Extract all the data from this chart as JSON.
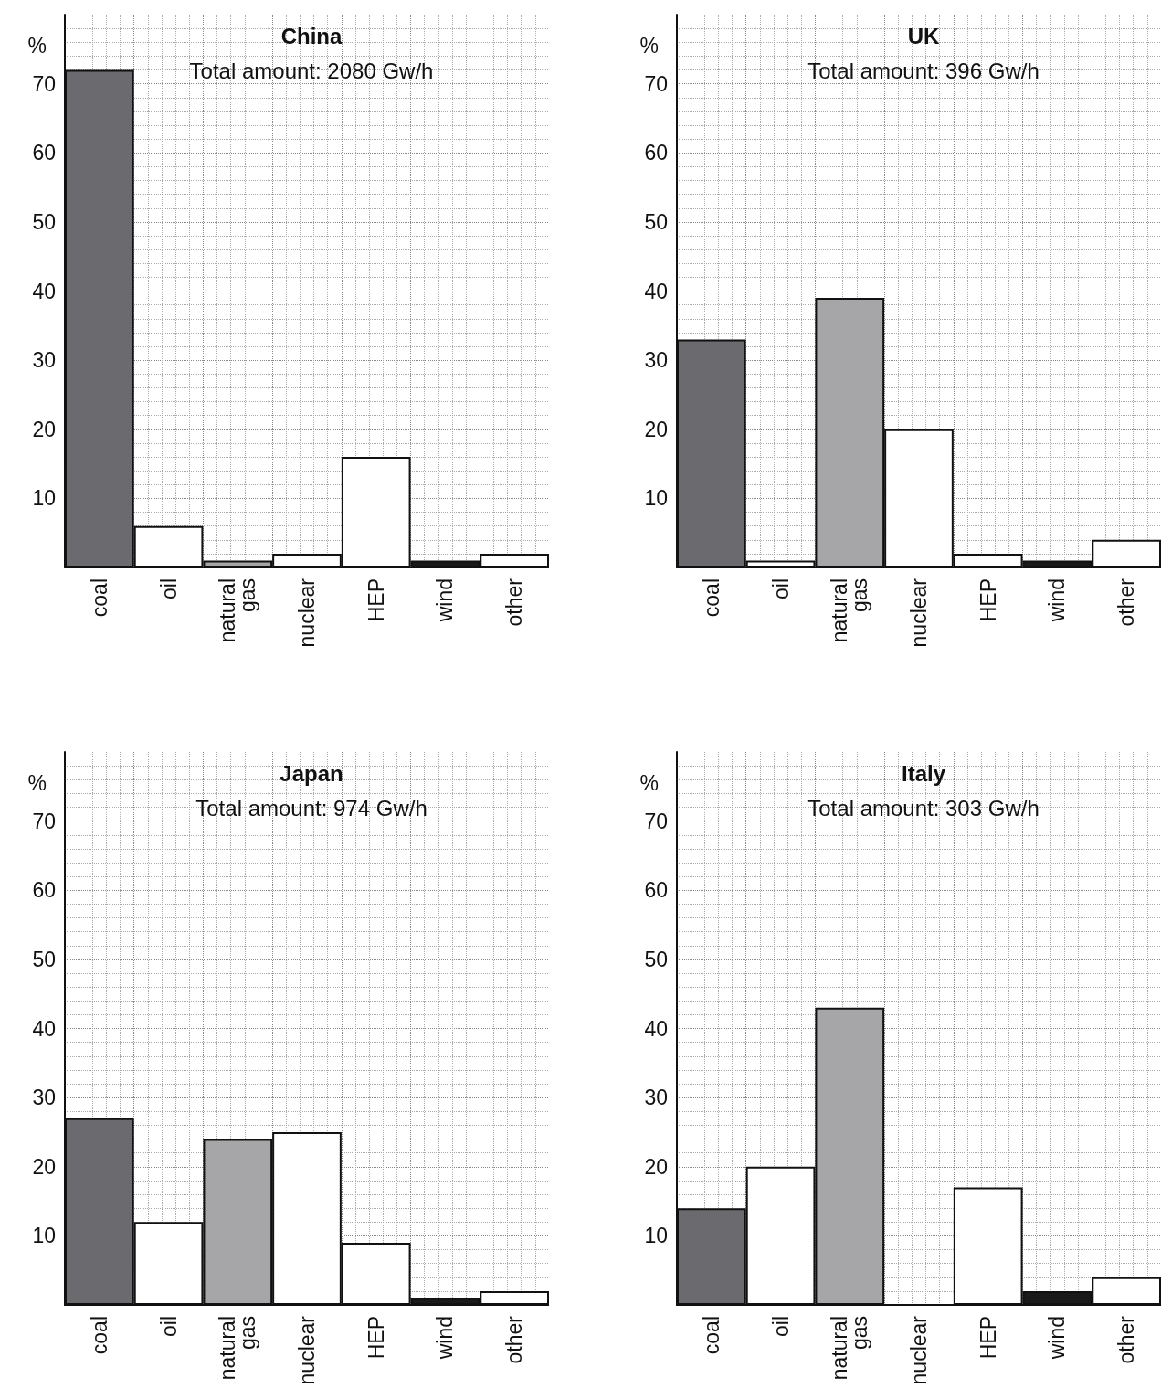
{
  "chart_data": [
    {
      "type": "bar",
      "title": "China",
      "subtitle": "Total amount: 2080 Gw/h",
      "ylabel": "%",
      "categories": [
        "coal",
        "oil",
        "natural gas",
        "nuclear",
        "HEP",
        "wind",
        "other"
      ],
      "values": [
        72,
        6,
        1,
        2,
        16,
        1,
        2
      ],
      "colors": [
        "#6b6b6f",
        "#ffffff",
        "#a6a6a8",
        "#ffffff",
        "#ffffff",
        "#1a1a1a",
        "#ffffff"
      ],
      "ylim": [
        0,
        80
      ],
      "yticks": [
        10,
        20,
        30,
        40,
        50,
        60,
        70
      ],
      "grid": true
    },
    {
      "type": "bar",
      "title": "UK",
      "subtitle": "Total amount: 396 Gw/h",
      "ylabel": "%",
      "categories": [
        "coal",
        "oil",
        "natural gas",
        "nuclear",
        "HEP",
        "wind",
        "other"
      ],
      "values": [
        33,
        1,
        39,
        20,
        2,
        1,
        4
      ],
      "colors": [
        "#6b6b6f",
        "#ffffff",
        "#a6a6a8",
        "#ffffff",
        "#ffffff",
        "#1a1a1a",
        "#ffffff"
      ],
      "ylim": [
        0,
        80
      ],
      "yticks": [
        10,
        20,
        30,
        40,
        50,
        60,
        70
      ],
      "grid": true
    },
    {
      "type": "bar",
      "title": "Japan",
      "subtitle": "Total amount: 974 Gw/h",
      "ylabel": "%",
      "categories": [
        "coal",
        "oil",
        "natural gas",
        "nuclear",
        "HEP",
        "wind",
        "other"
      ],
      "values": [
        27,
        12,
        24,
        25,
        9,
        1,
        2
      ],
      "colors": [
        "#6b6b6f",
        "#ffffff",
        "#a6a6a8",
        "#ffffff",
        "#ffffff",
        "#1a1a1a",
        "#ffffff"
      ],
      "ylim": [
        0,
        80
      ],
      "yticks": [
        10,
        20,
        30,
        40,
        50,
        60,
        70
      ],
      "grid": true
    },
    {
      "type": "bar",
      "title": "Italy",
      "subtitle": "Total amount: 303 Gw/h",
      "ylabel": "%",
      "categories": [
        "coal",
        "oil",
        "natural gas",
        "nuclear",
        "HEP",
        "wind",
        "other"
      ],
      "values": [
        14,
        20,
        43,
        0,
        17,
        2,
        4
      ],
      "colors": [
        "#6b6b6f",
        "#ffffff",
        "#a6a6a8",
        "#ffffff",
        "#ffffff",
        "#1a1a1a",
        "#ffffff"
      ],
      "ylim": [
        0,
        80
      ],
      "yticks": [
        10,
        20,
        30,
        40,
        50,
        60,
        70
      ],
      "grid": true
    }
  ]
}
